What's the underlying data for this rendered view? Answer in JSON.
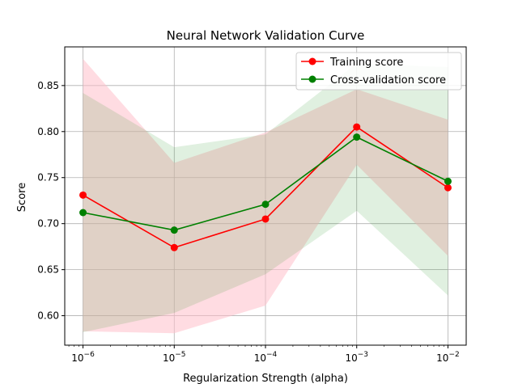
{
  "chart_data": {
    "type": "line",
    "title": "Neural Network Validation Curve",
    "xlabel": "Regularization Strength (alpha)",
    "ylabel": "Score",
    "x_scale": "log",
    "x": [
      1e-06,
      1e-05,
      0.0001,
      0.001,
      0.01
    ],
    "x_tick_labels": [
      {
        "base": "10",
        "exp": "−6"
      },
      {
        "base": "10",
        "exp": "−5"
      },
      {
        "base": "10",
        "exp": "−4"
      },
      {
        "base": "10",
        "exp": "−3"
      },
      {
        "base": "10",
        "exp": "−2"
      }
    ],
    "y_ticks": [
      "0.60",
      "0.65",
      "0.70",
      "0.75",
      "0.80",
      "0.85"
    ],
    "ylim": [
      0.568,
      0.892
    ],
    "grid": true,
    "legend_position": "top-right",
    "series": [
      {
        "name": "Training score",
        "color": "#ff0000",
        "band_color": "#ffc0cb",
        "marker": "circle",
        "values": [
          0.731,
          0.674,
          0.705,
          0.805,
          0.739
        ],
        "band_upper": [
          0.879,
          0.766,
          0.799,
          0.846,
          0.813
        ],
        "band_lower": [
          0.583,
          0.581,
          0.611,
          0.764,
          0.665
        ]
      },
      {
        "name": "Cross-validation score",
        "color": "#008000",
        "band_color": "#008000",
        "marker": "circle",
        "values": [
          0.712,
          0.693,
          0.721,
          0.794,
          0.746
        ],
        "band_upper": [
          0.842,
          0.783,
          0.797,
          0.874,
          0.87
        ],
        "band_lower": [
          0.582,
          0.603,
          0.645,
          0.714,
          0.622
        ]
      }
    ]
  }
}
